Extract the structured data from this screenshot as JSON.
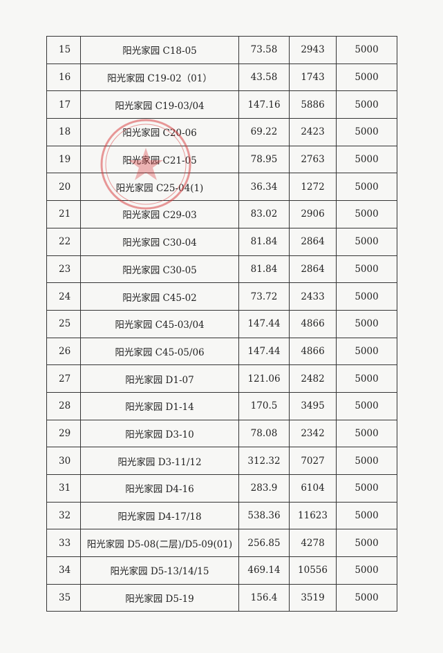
{
  "table": {
    "rows": [
      {
        "no": "15",
        "name": "阳光家园 C18-05",
        "area": "73.58",
        "amount": "2943",
        "standard": "5000"
      },
      {
        "no": "16",
        "name": "阳光家园 C19-02（01）",
        "area": "43.58",
        "amount": "1743",
        "standard": "5000"
      },
      {
        "no": "17",
        "name": "阳光家园 C19-03/04",
        "area": "147.16",
        "amount": "5886",
        "standard": "5000"
      },
      {
        "no": "18",
        "name": "阳光家园 C20-06",
        "area": "69.22",
        "amount": "2423",
        "standard": "5000"
      },
      {
        "no": "19",
        "name": "阳光家园 C21-05",
        "area": "78.95",
        "amount": "2763",
        "standard": "5000"
      },
      {
        "no": "20",
        "name": "阳光家园 C25-04(1)",
        "area": "36.34",
        "amount": "1272",
        "standard": "5000"
      },
      {
        "no": "21",
        "name": "阳光家园 C29-03",
        "area": "83.02",
        "amount": "2906",
        "standard": "5000"
      },
      {
        "no": "22",
        "name": "阳光家园 C30-04",
        "area": "81.84",
        "amount": "2864",
        "standard": "5000"
      },
      {
        "no": "23",
        "name": "阳光家园 C30-05",
        "area": "81.84",
        "amount": "2864",
        "standard": "5000"
      },
      {
        "no": "24",
        "name": "阳光家园 C45-02",
        "area": "73.72",
        "amount": "2433",
        "standard": "5000"
      },
      {
        "no": "25",
        "name": "阳光家园 C45-03/04",
        "area": "147.44",
        "amount": "4866",
        "standard": "5000"
      },
      {
        "no": "26",
        "name": "阳光家园 C45-05/06",
        "area": "147.44",
        "amount": "4866",
        "standard": "5000"
      },
      {
        "no": "27",
        "name": "阳光家园 D1-07",
        "area": "121.06",
        "amount": "2482",
        "standard": "5000"
      },
      {
        "no": "28",
        "name": "阳光家园 D1-14",
        "area": "170.5",
        "amount": "3495",
        "standard": "5000"
      },
      {
        "no": "29",
        "name": "阳光家园 D3-10",
        "area": "78.08",
        "amount": "2342",
        "standard": "5000"
      },
      {
        "no": "30",
        "name": "阳光家园 D3-11/12",
        "area": "312.32",
        "amount": "7027",
        "standard": "5000"
      },
      {
        "no": "31",
        "name": "阳光家园 D4-16",
        "area": "283.9",
        "amount": "6104",
        "standard": "5000"
      },
      {
        "no": "32",
        "name": "阳光家园 D4-17/18",
        "area": "538.36",
        "amount": "11623",
        "standard": "5000"
      },
      {
        "no": "33",
        "name": "阳光家园 D5-08(二层)/D5-09(01)",
        "area": "256.85",
        "amount": "4278",
        "standard": "5000"
      },
      {
        "no": "34",
        "name": "阳光家园 D5-13/14/15",
        "area": "469.14",
        "amount": "10556",
        "standard": "5000"
      },
      {
        "no": "35",
        "name": "阳光家园 D5-19",
        "area": "156.4",
        "amount": "3519",
        "standard": "5000"
      }
    ]
  },
  "seal": {
    "icon": "official-seal-star",
    "color": "#d9383a"
  }
}
